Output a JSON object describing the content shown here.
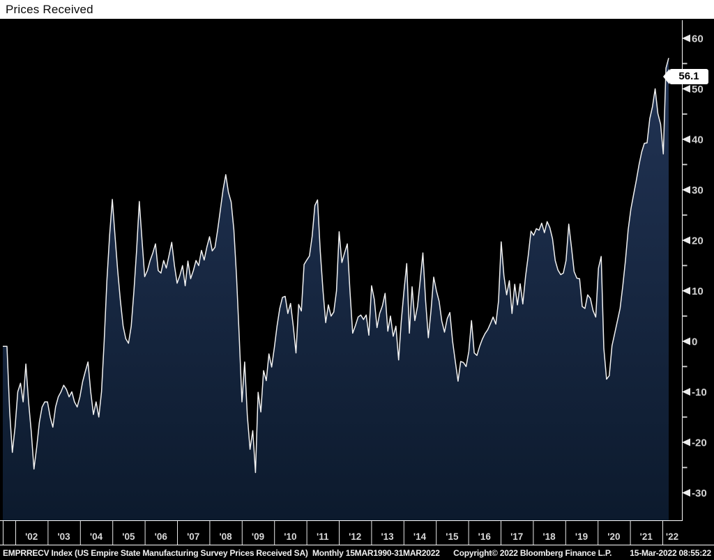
{
  "header": {
    "title": "Prices Received"
  },
  "footer": {
    "left": "EMPRRECV Index (US Empire State Manufacturing Survey Prices Received SA)  Monthly 15MAR1990-31MAR2022",
    "copyright": "Copyright© 2022 Bloomberg Finance L.P.",
    "datetime": "15-Mar-2022 08:55:22"
  },
  "colors": {
    "background": "#000000",
    "titlebar_bg": "#ffffff",
    "titlebar_text": "#0a0a0a",
    "area_fill_top": "#223455",
    "area_fill_bottom": "#0c1a2d",
    "line": "#f2f2f2",
    "axis_line": "#ffffff",
    "tick_label": "#d2d2d2",
    "year_label": "#d9d9d9",
    "footer_text": "#f2f2f2",
    "last_value_bg": "#ffffff",
    "last_value_text": "#000000"
  },
  "chart_data": {
    "type": "area",
    "title": "Prices Received",
    "series_name": "EMPRRECV Index (US Empire State Manufacturing Survey Prices Received SA)",
    "frequency": "Monthly",
    "visible_range_start": "2001-10",
    "visible_range_end": "2022-03",
    "full_data_range": "15MAR1990-31MAR2022",
    "last_value": 56.1,
    "last_value_label": "56.1",
    "ylim": [
      -35,
      63
    ],
    "y_major_ticks": [
      60,
      50,
      40,
      30,
      20,
      10,
      0,
      -10,
      -20,
      -30
    ],
    "y_minor_ticks": [
      55,
      45,
      35,
      25,
      15,
      5,
      -5,
      -15,
      -25
    ],
    "year_labels": [
      "'02",
      "'03",
      "'04",
      "'05",
      "'06",
      "'07",
      "'08",
      "'09",
      "'10",
      "'11",
      "'12",
      "'13",
      "'14",
      "'15",
      "'16",
      "'17",
      "'18",
      "'19",
      "'20",
      "'21",
      "'22"
    ],
    "grid": "off",
    "legend": "none",
    "values": [
      -1.0,
      -14.0,
      -22.0,
      -17.0,
      -10.0,
      -8.3,
      -12.0,
      -4.5,
      -12.0,
      -18.0,
      -25.3,
      -21.0,
      -16.0,
      -13.0,
      -12.0,
      -12.0,
      -15.0,
      -17.0,
      -13.0,
      -11.0,
      -10.0,
      -8.7,
      -9.5,
      -11.0,
      -10.0,
      -12.0,
      -13.0,
      -11.0,
      -8.0,
      -6.0,
      -4.1,
      -10.0,
      -14.5,
      -12.0,
      -15.0,
      -10.0,
      0.0,
      12.0,
      21.0,
      28.1,
      21.0,
      14.0,
      8.0,
      3.0,
      0.5,
      -0.4,
      3.0,
      10.0,
      18.0,
      27.7,
      20.0,
      12.8,
      14.0,
      16.0,
      17.5,
      19.3,
      14.0,
      13.5,
      16.0,
      14.5,
      17.0,
      19.6,
      15.0,
      11.5,
      13.0,
      15.0,
      11.0,
      15.9,
      12.4,
      14.0,
      16.0,
      15.0,
      18.0,
      16.1,
      18.6,
      20.7,
      17.9,
      18.6,
      22.0,
      26.0,
      30.0,
      33.0,
      29.5,
      27.6,
      22.1,
      12.9,
      0.9,
      -12.0,
      -4.1,
      -14.7,
      -21.4,
      -17.7,
      -26.0,
      -10.1,
      -14.0,
      -5.8,
      -7.8,
      -2.5,
      -5.1,
      -1.2,
      3.0,
      6.5,
      8.7,
      8.9,
      5.5,
      7.5,
      3.0,
      -2.3,
      7.3,
      6.0,
      15.2,
      16.1,
      16.9,
      20.8,
      26.9,
      28.0,
      17.9,
      10.1,
      3.7,
      7.2,
      5.0,
      5.8,
      10.0,
      21.7,
      15.6,
      17.5,
      19.3,
      10.0,
      1.6,
      3.1,
      4.8,
      5.2,
      4.3,
      5.2,
      1.2,
      11.0,
      8.3,
      2.7,
      5.5,
      7.0,
      9.5,
      2.0,
      5.0,
      1.0,
      3.0,
      -3.7,
      4.0,
      10.0,
      15.4,
      1.6,
      10.8,
      4.1,
      6.9,
      12.0,
      17.5,
      8.0,
      0.7,
      6.0,
      12.7,
      10.0,
      7.9,
      4.0,
      1.8,
      4.5,
      5.7,
      0.0,
      -4.0,
      -7.9,
      -4.0,
      -4.2,
      -5.0,
      -2.0,
      4.1,
      -2.3,
      -2.8,
      -1.0,
      0.4,
      1.5,
      2.3,
      3.5,
      4.8,
      3.4,
      8.0,
      19.7,
      13.0,
      9.2,
      12.0,
      5.5,
      11.3,
      7.2,
      11.4,
      7.4,
      12.8,
      17.0,
      21.8,
      21.0,
      22.3,
      22.0,
      23.4,
      21.5,
      23.7,
      22.5,
      20.3,
      16.0,
      14.1,
      13.2,
      13.5,
      16.0,
      23.2,
      18.6,
      13.8,
      12.5,
      12.4,
      6.9,
      6.5,
      9.2,
      8.5,
      6.1,
      4.8,
      14.5,
      16.8,
      -1.4,
      -7.5,
      -6.8,
      -0.9,
      1.5,
      4.0,
      6.5,
      11.0,
      16.0,
      22.1,
      26.2,
      29.0,
      31.8,
      34.9,
      37.5,
      39.2,
      39.3,
      44.1,
      46.5,
      50.0,
      45.1,
      43.0,
      37.1,
      54.1,
      56.1
    ]
  }
}
